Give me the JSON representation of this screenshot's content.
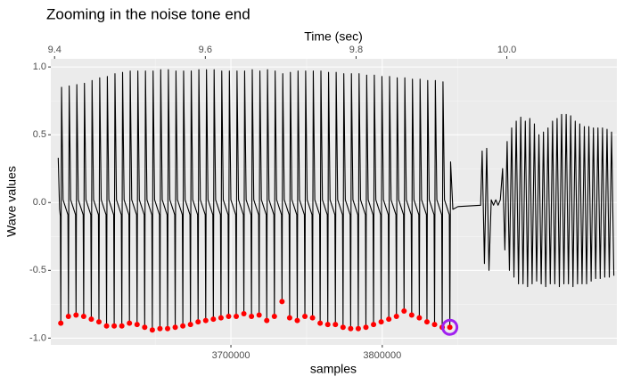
{
  "chart_data": {
    "type": "line",
    "title": "Zooming in the noise tone end",
    "xlabel": "samples",
    "ylabel": "Wave values",
    "x2label": "Time (sec)",
    "xlim": [
      3581000,
      3955000
    ],
    "xticks": [
      3700000,
      3800000
    ],
    "x_minor_ticks": [
      3650000,
      3750000,
      3850000
    ],
    "x2lim": [
      9.395,
      10.146
    ],
    "x2ticks": [
      9.4,
      9.6,
      9.8,
      {
        "value": 10,
        "label": "10.0"
      }
    ],
    "ylim": [
      -1.05,
      1.06
    ],
    "yticks": [
      {
        "value": -1,
        "label": "-1.0"
      },
      -0.5,
      {
        "value": 0,
        "label": "0.0"
      },
      0.5,
      {
        "value": 1,
        "label": "1.0"
      }
    ],
    "y_minor_ticks": [
      -0.75,
      -0.25,
      0.25,
      0.75
    ],
    "grid": true,
    "series": [
      {
        "color": "#000000",
        "x": [
          3585900,
          3586800,
          3587300,
          3587600,
          3588100,
          3589100,
          3592300,
          3592640,
          3593140,
          3594140,
          3597340,
          3597680,
          3598180,
          3599180,
          3602380,
          3602720,
          3603220,
          3604220,
          3607420,
          3607760,
          3608260,
          3609260,
          3612460,
          3612800,
          3613300,
          3614300,
          3617500,
          3617840,
          3618340,
          3619340,
          3622540,
          3622880,
          3623380,
          3624380,
          3627580,
          3627920,
          3628420,
          3629420,
          3632620,
          3632960,
          3633460,
          3634460,
          3637660,
          3638000,
          3638500,
          3639500,
          3642700,
          3643040,
          3643540,
          3644540,
          3647740,
          3648080,
          3648580,
          3649580,
          3652780,
          3653120,
          3653620,
          3654620,
          3657820,
          3658160,
          3658660,
          3659660,
          3662860,
          3663200,
          3663700,
          3664700,
          3667900,
          3668240,
          3668740,
          3669740,
          3672940,
          3673280,
          3673780,
          3674780,
          3677980,
          3678320,
          3678820,
          3679820,
          3683020,
          3683360,
          3683860,
          3684860,
          3688060,
          3688400,
          3688900,
          3689900,
          3693100,
          3693440,
          3693940,
          3694940,
          3698140,
          3698480,
          3698980,
          3699980,
          3703180,
          3703520,
          3704020,
          3705020,
          3708220,
          3708560,
          3709060,
          3710060,
          3713260,
          3713600,
          3714100,
          3715100,
          3718300,
          3718640,
          3719140,
          3720140,
          3723340,
          3723680,
          3724180,
          3725180,
          3728380,
          3728720,
          3729220,
          3730220,
          3733420,
          3733760,
          3734260,
          3735260,
          3738460,
          3738800,
          3739300,
          3740300,
          3743500,
          3743840,
          3744340,
          3745340,
          3748540,
          3748880,
          3749380,
          3750380,
          3753580,
          3753920,
          3754420,
          3755420,
          3758620,
          3758960,
          3759460,
          3760460,
          3763660,
          3764000,
          3764500,
          3765500,
          3768700,
          3769040,
          3769540,
          3770540,
          3773740,
          3774080,
          3774580,
          3775580,
          3778780,
          3779120,
          3779620,
          3780620,
          3783820,
          3784160,
          3784660,
          3785660,
          3788860,
          3789200,
          3789700,
          3790700,
          3793900,
          3794240,
          3794740,
          3795740,
          3798940,
          3799280,
          3799780,
          3800780,
          3803980,
          3804320,
          3804820,
          3805820,
          3809020,
          3809360,
          3809860,
          3810860,
          3814060,
          3814400,
          3814900,
          3815900,
          3819100,
          3819440,
          3819940,
          3820940,
          3824140,
          3824480,
          3824980,
          3825980,
          3829180,
          3829520,
          3830020,
          3831020,
          3834220,
          3834560,
          3835060,
          3836060,
          3839260,
          3839600,
          3840100,
          3841100,
          3844300,
          3844640,
          3845140,
          3846640,
          3850000,
          3865000,
          3866000,
          3867500,
          3869000,
          3870500,
          3872000,
          3873500,
          3875000,
          3876500,
          3878000,
          3879500,
          3881000,
          3882500,
          3884000,
          3885500,
          3887000,
          3888500,
          3890000,
          3891500,
          3893000,
          3894500,
          3896000,
          3897500,
          3899000,
          3900500,
          3902000,
          3903500,
          3905000,
          3906500,
          3908000,
          3909500,
          3911000,
          3912500,
          3914000,
          3915500,
          3917000,
          3918500,
          3920000,
          3921500,
          3923000,
          3924500,
          3926000,
          3927500,
          3929000,
          3930500,
          3932000,
          3933500,
          3935000,
          3936500,
          3938000,
          3939500,
          3941000,
          3942500,
          3944000,
          3945500,
          3947000,
          3948500,
          3950000,
          3951500,
          3953000
        ],
        "values": [
          0.33,
          -0.05,
          -0.1,
          -0.89,
          0.85,
          0.02,
          -0.09,
          -0.84,
          0.86,
          0.02,
          -0.09,
          -0.83,
          0.87,
          0.02,
          -0.09,
          -0.84,
          0.88,
          0.02,
          -0.09,
          -0.86,
          0.9,
          0.02,
          -0.09,
          -0.88,
          0.92,
          0.02,
          -0.09,
          -0.91,
          0.93,
          0.02,
          -0.09,
          -0.91,
          0.95,
          0.02,
          -0.09,
          -0.91,
          0.96,
          0.02,
          -0.09,
          -0.89,
          0.97,
          0.02,
          -0.09,
          -0.9,
          0.97,
          0.02,
          -0.09,
          -0.92,
          0.97,
          0.02,
          -0.09,
          -0.94,
          0.97,
          0.02,
          -0.09,
          -0.93,
          0.98,
          0.02,
          -0.09,
          -0.93,
          0.98,
          0.02,
          -0.09,
          -0.92,
          0.97,
          0.02,
          -0.09,
          -0.91,
          0.97,
          0.02,
          -0.09,
          -0.9,
          0.97,
          0.02,
          -0.09,
          -0.88,
          0.98,
          0.02,
          -0.09,
          -0.87,
          0.98,
          0.02,
          -0.09,
          -0.86,
          0.98,
          0.02,
          -0.09,
          -0.85,
          0.97,
          0.02,
          -0.09,
          -0.84,
          0.97,
          0.02,
          -0.09,
          -0.84,
          0.97,
          0.02,
          -0.09,
          -0.82,
          0.97,
          0.02,
          -0.09,
          -0.84,
          0.98,
          0.02,
          -0.09,
          -0.83,
          0.97,
          0.02,
          -0.09,
          -0.87,
          0.98,
          0.02,
          -0.09,
          -0.84,
          0.97,
          0.02,
          -0.09,
          -0.73,
          0.95,
          0.02,
          -0.09,
          -0.85,
          0.96,
          0.02,
          -0.09,
          -0.87,
          0.97,
          0.02,
          -0.09,
          -0.84,
          0.97,
          0.02,
          -0.09,
          -0.85,
          0.97,
          0.02,
          -0.09,
          -0.89,
          0.97,
          0.02,
          -0.09,
          -0.9,
          0.96,
          0.02,
          -0.09,
          -0.9,
          0.96,
          0.02,
          -0.09,
          -0.92,
          0.95,
          0.02,
          -0.09,
          -0.93,
          0.95,
          0.02,
          -0.09,
          -0.93,
          0.95,
          0.02,
          -0.09,
          -0.92,
          0.94,
          0.02,
          -0.09,
          -0.9,
          0.94,
          0.02,
          -0.09,
          -0.88,
          0.93,
          0.02,
          -0.09,
          -0.86,
          0.93,
          0.02,
          -0.09,
          -0.84,
          0.92,
          0.02,
          -0.09,
          -0.8,
          0.92,
          0.02,
          -0.09,
          -0.83,
          0.91,
          0.02,
          -0.09,
          -0.85,
          0.91,
          0.02,
          -0.09,
          -0.88,
          0.9,
          0.02,
          -0.09,
          -0.9,
          0.9,
          0.02,
          -0.09,
          -0.92,
          0.89,
          0.02,
          -0.09,
          -0.92,
          0.3,
          -0.05,
          -0.03,
          -0.02,
          0.38,
          -0.45,
          0.4,
          -0.5,
          0.02,
          -0.02,
          0.02,
          -0.02,
          0.02,
          0.25,
          -0.35,
          0.45,
          -0.5,
          0.55,
          -0.55,
          0.6,
          -0.6,
          0.63,
          -0.6,
          0.6,
          -0.62,
          0.62,
          -0.6,
          0.58,
          -0.58,
          0.5,
          -0.6,
          0.52,
          -0.62,
          0.55,
          -0.6,
          0.6,
          -0.6,
          0.62,
          -0.62,
          0.65,
          -0.6,
          0.65,
          -0.6,
          0.64,
          -0.62,
          0.6,
          -0.6,
          0.58,
          -0.6,
          0.56,
          -0.6,
          0.56,
          -0.58,
          0.55,
          -0.56,
          0.55,
          -0.56,
          0.55,
          -0.55,
          0.54,
          -0.55,
          0.52,
          -0.54
        ]
      }
    ],
    "points": {
      "color": "#ff0000",
      "x": [
        3587600,
        3592640,
        3597680,
        3602720,
        3607760,
        3612800,
        3617840,
        3622880,
        3627920,
        3632960,
        3638000,
        3643040,
        3648080,
        3653120,
        3658160,
        3663200,
        3668240,
        3673280,
        3678320,
        3683360,
        3688400,
        3693440,
        3698480,
        3703520,
        3708560,
        3713600,
        3718640,
        3723680,
        3728720,
        3733760,
        3738800,
        3743840,
        3748880,
        3753920,
        3758960,
        3764000,
        3769040,
        3774080,
        3779120,
        3784160,
        3789200,
        3794240,
        3799280,
        3804320,
        3809360,
        3814400,
        3819440,
        3824480,
        3829520,
        3834560,
        3839600,
        3844640
      ],
      "values": [
        -0.89,
        -0.84,
        -0.83,
        -0.84,
        -0.86,
        -0.88,
        -0.91,
        -0.91,
        -0.91,
        -0.89,
        -0.9,
        -0.92,
        -0.94,
        -0.93,
        -0.93,
        -0.92,
        -0.91,
        -0.9,
        -0.88,
        -0.87,
        -0.86,
        -0.85,
        -0.84,
        -0.84,
        -0.82,
        -0.84,
        -0.83,
        -0.87,
        -0.84,
        -0.73,
        -0.85,
        -0.87,
        -0.84,
        -0.85,
        -0.89,
        -0.9,
        -0.9,
        -0.92,
        -0.93,
        -0.93,
        -0.92,
        -0.9,
        -0.88,
        -0.86,
        -0.84,
        -0.8,
        -0.83,
        -0.85,
        -0.88,
        -0.9,
        -0.92,
        -0.92
      ]
    },
    "highlight": {
      "color": "#a020f0",
      "x": [
        3844640
      ],
      "values": [
        -0.92
      ]
    }
  }
}
